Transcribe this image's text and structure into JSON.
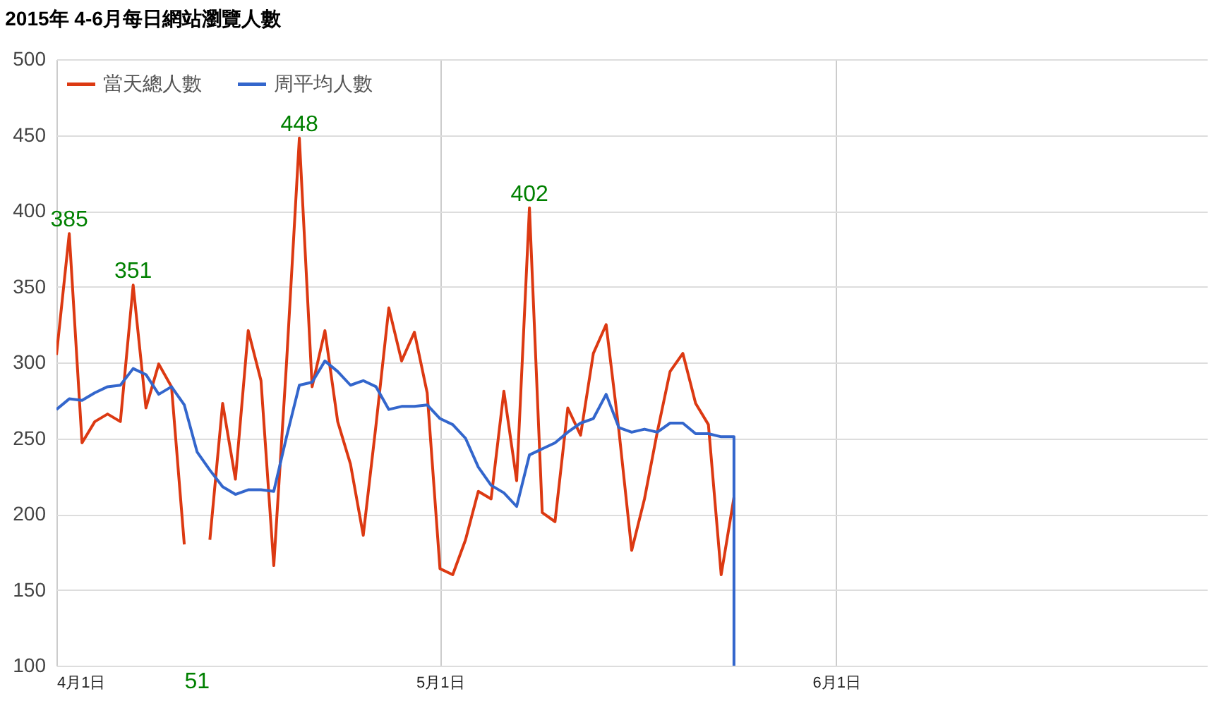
{
  "chart_data": {
    "type": "line",
    "title": "2015年 4-6月每日網站瀏覽人數",
    "x": [
      "2015-04-01",
      "2015-04-02",
      "2015-04-03",
      "2015-04-04",
      "2015-04-05",
      "2015-04-06",
      "2015-04-07",
      "2015-04-08",
      "2015-04-09",
      "2015-04-10",
      "2015-04-11",
      "2015-04-12",
      "2015-04-13",
      "2015-04-14",
      "2015-04-15",
      "2015-04-16",
      "2015-04-17",
      "2015-04-18",
      "2015-04-19",
      "2015-04-20",
      "2015-04-21",
      "2015-04-22",
      "2015-04-23",
      "2015-04-24",
      "2015-04-25",
      "2015-04-26",
      "2015-04-27",
      "2015-04-28",
      "2015-04-29",
      "2015-04-30",
      "2015-05-01",
      "2015-05-02",
      "2015-05-03",
      "2015-05-04",
      "2015-05-05",
      "2015-05-06",
      "2015-05-07",
      "2015-05-08",
      "2015-05-09",
      "2015-05-10",
      "2015-05-11",
      "2015-05-12",
      "2015-05-13",
      "2015-05-14",
      "2015-05-15",
      "2015-05-16",
      "2015-05-17",
      "2015-05-18",
      "2015-05-19",
      "2015-05-20",
      "2015-05-21",
      "2015-05-22",
      "2015-05-23",
      "2015-05-24"
    ],
    "series": [
      {
        "name": "當天總人數",
        "color": "#dc3912",
        "values": [
          305,
          385,
          247,
          261,
          266,
          261,
          351,
          270,
          299,
          284,
          180,
          null,
          183,
          273,
          223,
          321,
          288,
          166,
          300,
          448,
          284,
          321,
          261,
          233,
          186,
          259,
          336,
          301,
          320,
          280,
          164,
          160,
          183,
          215,
          210,
          281,
          222,
          402,
          201,
          195,
          270,
          252,
          306,
          325,
          255,
          176,
          210,
          254,
          294,
          306,
          273,
          259,
          160,
          211
        ],
        "value_labels": [
          null,
          "385",
          null,
          null,
          null,
          null,
          "351",
          null,
          null,
          null,
          null,
          "51",
          null,
          null,
          null,
          null,
          null,
          null,
          null,
          "448",
          null,
          null,
          null,
          null,
          null,
          null,
          null,
          null,
          null,
          null,
          null,
          null,
          null,
          null,
          null,
          null,
          null,
          "402",
          null,
          null,
          null,
          null,
          null,
          null,
          null,
          null,
          null,
          null,
          null,
          null,
          null,
          null,
          null,
          null
        ]
      },
      {
        "name": "周平均人數",
        "color": "#3366cc",
        "x": [
          "2015-04-01",
          "2015-04-02",
          "2015-04-03",
          "2015-04-04",
          "2015-04-05",
          "2015-04-06",
          "2015-04-07",
          "2015-04-08",
          "2015-04-09",
          "2015-04-10",
          "2015-04-11",
          "2015-04-12",
          "2015-04-13",
          "2015-04-14",
          "2015-04-15",
          "2015-04-16",
          "2015-04-17",
          "2015-04-18",
          "2015-04-19",
          "2015-04-20",
          "2015-04-21",
          "2015-04-22",
          "2015-04-23",
          "2015-04-24",
          "2015-04-25",
          "2015-04-26",
          "2015-04-27",
          "2015-04-28",
          "2015-04-29",
          "2015-04-30",
          "2015-05-01",
          "2015-05-02",
          "2015-05-03",
          "2015-05-04",
          "2015-05-05",
          "2015-05-06",
          "2015-05-07",
          "2015-05-08",
          "2015-05-09",
          "2015-05-10",
          "2015-05-11",
          "2015-05-12",
          "2015-05-13",
          "2015-05-14",
          "2015-05-15",
          "2015-05-16",
          "2015-05-17",
          "2015-05-18",
          "2015-05-19",
          "2015-05-20",
          "2015-05-21",
          "2015-05-22",
          "2015-05-23",
          "2015-05-24",
          "2015-05-24"
        ],
        "values": [
          269,
          276,
          275,
          280,
          284,
          285,
          296,
          292,
          279,
          284,
          272,
          241,
          229,
          218,
          213,
          216,
          216,
          215,
          251,
          285,
          287,
          301,
          294,
          285,
          288,
          284,
          269,
          271,
          271,
          272,
          263,
          259,
          250,
          231,
          219,
          214,
          205,
          239,
          243,
          247,
          254,
          260,
          263,
          279,
          257,
          254,
          256,
          254,
          260,
          260,
          253,
          253,
          251,
          251,
          100
        ]
      }
    ],
    "xlim": [
      "2015-04-01",
      "2015-06-30"
    ],
    "xticks": [
      {
        "value": "2015-04-01",
        "label": "4月1日"
      },
      {
        "value": "2015-05-01",
        "label": "5月1日"
      },
      {
        "value": "2015-06-01",
        "label": "6月1日"
      }
    ],
    "ylim": [
      100,
      500
    ],
    "yticks": [
      100,
      150,
      200,
      250,
      300,
      350,
      400,
      450,
      500
    ],
    "grid": true,
    "legend": "top left",
    "line_style": "solid",
    "marker": "none"
  }
}
